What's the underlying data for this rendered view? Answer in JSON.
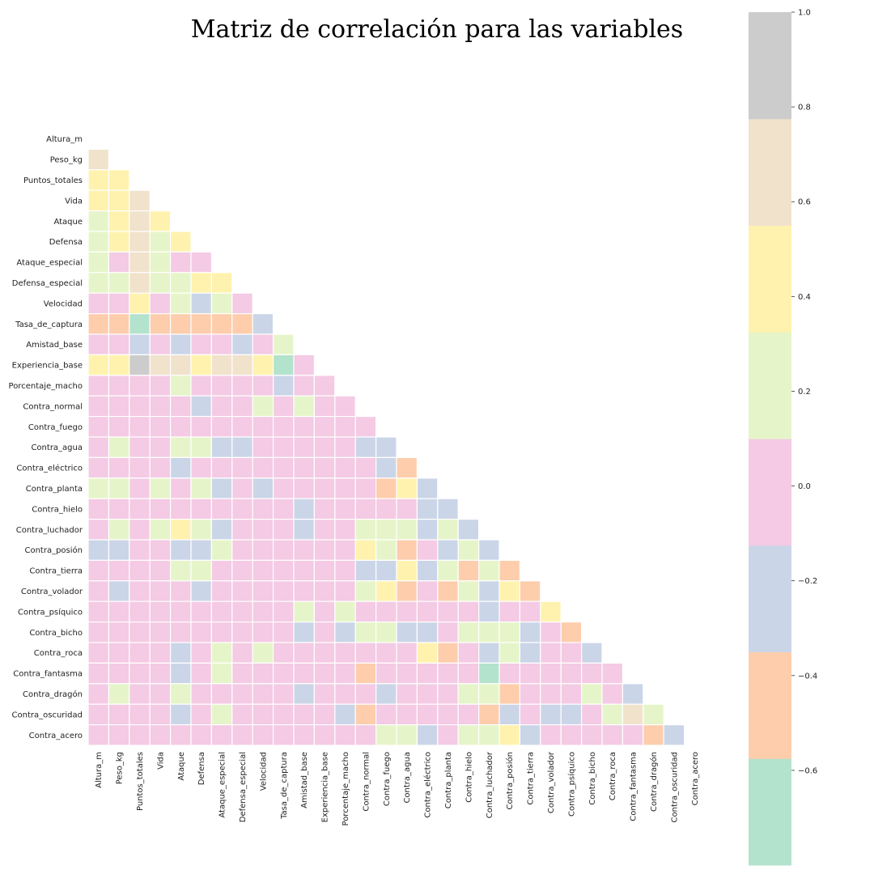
{
  "chart_data": {
    "type": "heatmap",
    "title": "Matriz de correlación para las variables",
    "variables": [
      "Altura_m",
      "Peso_kg",
      "Puntos_totales",
      "Vida",
      "Ataque",
      "Defensa",
      "Ataque_especial",
      "Defensa_especial",
      "Velocidad",
      "Tasa_de_captura",
      "Amistad_base",
      "Experiencia_base",
      "Porcentaje_macho",
      "Contra_normal",
      "Contra_fuego",
      "Contra_agua",
      "Contra_eléctrico",
      "Contra_planta",
      "Contra_hielo",
      "Contra_luchador",
      "Contra_posión",
      "Contra_tierra",
      "Contra_volador",
      "Contra_psíquico",
      "Contra_bicho",
      "Contra_roca",
      "Contra_fantasma",
      "Contra_dragón",
      "Contra_oscuridad",
      "Contra_acero"
    ],
    "mask": "upper_triangle_and_diagonal",
    "lower_triangle_values": [
      [],
      [
        0.65
      ],
      [
        0.45,
        0.45
      ],
      [
        0.45,
        0.45,
        0.65
      ],
      [
        0.25,
        0.45,
        0.65,
        0.45
      ],
      [
        0.25,
        0.45,
        0.65,
        0.25,
        0.45
      ],
      [
        0.25,
        0.0,
        0.65,
        0.25,
        0.0,
        0.0
      ],
      [
        0.25,
        0.25,
        0.65,
        0.25,
        0.25,
        0.45,
        0.45
      ],
      [
        0.0,
        0.0,
        0.45,
        0.0,
        0.25,
        -0.2,
        0.25,
        0.0
      ],
      [
        -0.45,
        -0.45,
        -0.65,
        -0.45,
        -0.45,
        -0.45,
        -0.45,
        -0.45,
        -0.2
      ],
      [
        0.0,
        0.0,
        -0.2,
        0.0,
        -0.2,
        0.0,
        0.0,
        -0.2,
        0.0,
        0.25
      ],
      [
        0.45,
        0.45,
        0.85,
        0.65,
        0.65,
        0.45,
        0.65,
        0.65,
        0.45,
        -0.65,
        0.0
      ],
      [
        0.0,
        0.0,
        0.0,
        0.0,
        0.25,
        0.0,
        0.0,
        0.0,
        0.0,
        -0.2,
        0.0,
        0.0
      ],
      [
        0.0,
        0.0,
        0.0,
        0.0,
        0.0,
        -0.2,
        0.0,
        0.0,
        0.25,
        0.0,
        0.25,
        0.0,
        0.0
      ],
      [
        0.0,
        0.0,
        0.0,
        0.0,
        0.0,
        0.0,
        0.0,
        0.0,
        0.0,
        0.0,
        0.0,
        0.0,
        0.0,
        0.0
      ],
      [
        0.0,
        0.25,
        0.0,
        0.0,
        0.25,
        0.25,
        -0.2,
        -0.2,
        0.0,
        0.0,
        0.0,
        0.0,
        0.0,
        -0.2,
        -0.2
      ],
      [
        0.0,
        0.0,
        0.0,
        0.0,
        -0.2,
        0.0,
        0.0,
        0.0,
        0.0,
        0.0,
        0.0,
        0.0,
        0.0,
        0.0,
        -0.2,
        -0.45
      ],
      [
        0.25,
        0.25,
        0.0,
        0.25,
        0.0,
        0.25,
        -0.2,
        0.0,
        -0.2,
        0.0,
        0.0,
        0.0,
        0.0,
        0.0,
        -0.45,
        0.45,
        -0.2
      ],
      [
        0.0,
        0.0,
        0.0,
        0.0,
        0.0,
        0.0,
        0.0,
        0.0,
        0.0,
        0.0,
        -0.2,
        0.0,
        0.0,
        0.0,
        0.0,
        0.0,
        -0.2,
        -0.2
      ],
      [
        0.0,
        0.25,
        0.0,
        0.25,
        0.45,
        0.25,
        -0.2,
        0.0,
        0.0,
        0.0,
        -0.2,
        0.0,
        0.0,
        0.25,
        0.25,
        0.25,
        -0.2,
        0.25,
        -0.2
      ],
      [
        -0.2,
        -0.2,
        0.0,
        0.0,
        -0.2,
        -0.2,
        0.25,
        0.0,
        0.0,
        0.0,
        0.0,
        0.0,
        0.0,
        0.45,
        0.25,
        -0.45,
        0.0,
        -0.2,
        0.25,
        -0.2
      ],
      [
        0.0,
        0.0,
        0.0,
        0.0,
        0.25,
        0.25,
        0.0,
        0.0,
        0.0,
        0.0,
        0.0,
        0.0,
        0.0,
        -0.2,
        -0.2,
        0.45,
        -0.2,
        0.25,
        -0.45,
        0.25,
        -0.45
      ],
      [
        0.0,
        -0.2,
        0.0,
        0.0,
        0.0,
        -0.2,
        0.0,
        0.0,
        0.0,
        0.0,
        0.0,
        0.0,
        0.0,
        0.25,
        0.45,
        -0.45,
        0.0,
        -0.45,
        0.25,
        -0.2,
        0.45,
        -0.45
      ],
      [
        0.0,
        0.0,
        0.0,
        0.0,
        0.0,
        0.0,
        0.0,
        0.0,
        0.0,
        0.0,
        0.25,
        0.0,
        0.25,
        0.0,
        0.0,
        0.0,
        0.0,
        0.0,
        0.0,
        -0.2,
        0.0,
        0.0,
        0.45
      ],
      [
        0.0,
        0.0,
        0.0,
        0.0,
        0.0,
        0.0,
        0.0,
        0.0,
        0.0,
        0.0,
        -0.2,
        0.0,
        -0.2,
        0.25,
        0.25,
        -0.2,
        -0.2,
        0.0,
        0.25,
        0.25,
        0.25,
        -0.2,
        0.0,
        -0.45
      ],
      [
        0.0,
        0.0,
        0.0,
        0.0,
        -0.2,
        0.0,
        0.25,
        0.0,
        0.25,
        0.0,
        0.0,
        0.0,
        0.0,
        0.0,
        0.0,
        0.0,
        0.45,
        -0.45,
        0.0,
        -0.2,
        0.25,
        -0.2,
        0.0,
        0.0,
        -0.2
      ],
      [
        0.0,
        0.0,
        0.0,
        0.0,
        -0.2,
        0.0,
        0.25,
        0.0,
        0.0,
        0.0,
        0.0,
        0.0,
        0.0,
        -0.45,
        0.0,
        0.0,
        0.0,
        0.0,
        0.0,
        -0.65,
        0.0,
        0.0,
        0.0,
        0.0,
        0.0,
        0.0
      ],
      [
        0.0,
        0.25,
        0.0,
        0.0,
        0.25,
        0.0,
        0.0,
        0.0,
        0.0,
        0.0,
        -0.2,
        0.0,
        0.0,
        0.0,
        -0.2,
        0.0,
        0.0,
        0.0,
        0.25,
        0.25,
        -0.45,
        0.0,
        0.0,
        0.0,
        0.25,
        0.0,
        -0.2
      ],
      [
        0.0,
        0.0,
        0.0,
        0.0,
        -0.2,
        0.0,
        0.25,
        0.0,
        0.0,
        0.0,
        0.0,
        0.0,
        -0.2,
        -0.45,
        0.0,
        0.0,
        0.0,
        0.0,
        0.0,
        -0.45,
        -0.2,
        0.0,
        -0.2,
        -0.2,
        0.0,
        0.25,
        0.65,
        0.25
      ],
      [
        0.0,
        0.0,
        0.0,
        0.0,
        0.0,
        0.0,
        0.0,
        0.0,
        0.0,
        0.0,
        0.0,
        0.0,
        0.0,
        0.0,
        0.25,
        0.25,
        -0.2,
        0.0,
        0.25,
        0.25,
        0.45,
        -0.2,
        0.0,
        0.0,
        0.0,
        0.0,
        0.0,
        -0.45,
        -0.2
      ]
    ],
    "colorbar": {
      "vmin": -0.8,
      "vmax": 1.0,
      "ticks": [
        -0.6,
        -0.4,
        -0.2,
        0.0,
        0.2,
        0.4,
        0.6,
        0.8,
        1.0
      ],
      "tick_labels": [
        "−0.6",
        "−0.4",
        "−0.2",
        "0.0",
        "0.2",
        "0.4",
        "0.6",
        "0.8",
        "1.0"
      ],
      "colormap": "Pastel2",
      "colors": [
        "#b3e2cd",
        "#fdcdac",
        "#cbd5e8",
        "#f4cae4",
        "#e6f5c9",
        "#fff2ae",
        "#f1e2cc",
        "#cccccc"
      ]
    }
  }
}
